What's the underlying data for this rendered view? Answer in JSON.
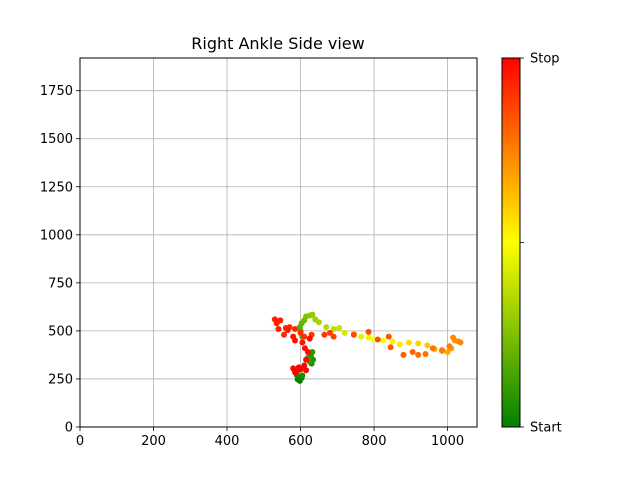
{
  "chart_data": {
    "type": "scatter",
    "title": "Right Ankle Side view",
    "xlabel": "",
    "ylabel": "",
    "xlim": [
      0,
      1080
    ],
    "ylim": [
      0,
      1920
    ],
    "xticks": [
      0,
      200,
      400,
      600,
      800,
      1000
    ],
    "yticks": [
      0,
      250,
      500,
      750,
      1000,
      1250,
      1500,
      1750
    ],
    "grid": true,
    "colorbar": {
      "colors": [
        "#008000",
        "#ffff00",
        "#ff0000"
      ],
      "tick_labels": [
        "Start",
        "",
        "Stop"
      ]
    },
    "series": [
      {
        "points": [
          {
            "x": 598,
            "y": 240,
            "t": 0.0
          },
          {
            "x": 592,
            "y": 248,
            "t": 0.01
          },
          {
            "x": 603,
            "y": 255,
            "t": 0.02
          },
          {
            "x": 596,
            "y": 262,
            "t": 0.03
          },
          {
            "x": 590,
            "y": 270,
            "t": 0.04
          },
          {
            "x": 605,
            "y": 268,
            "t": 0.05
          },
          {
            "x": 630,
            "y": 330,
            "t": 0.06
          },
          {
            "x": 634,
            "y": 350,
            "t": 0.07
          },
          {
            "x": 628,
            "y": 370,
            "t": 0.08
          },
          {
            "x": 632,
            "y": 390,
            "t": 0.09
          },
          {
            "x": 625,
            "y": 340,
            "t": 0.1
          },
          {
            "x": 620,
            "y": 360,
            "t": 0.11
          },
          {
            "x": 605,
            "y": 470,
            "t": 0.14
          },
          {
            "x": 600,
            "y": 500,
            "t": 0.16
          },
          {
            "x": 598,
            "y": 520,
            "t": 0.18
          },
          {
            "x": 603,
            "y": 540,
            "t": 0.2
          },
          {
            "x": 610,
            "y": 555,
            "t": 0.22
          },
          {
            "x": 615,
            "y": 575,
            "t": 0.25
          },
          {
            "x": 625,
            "y": 580,
            "t": 0.27
          },
          {
            "x": 632,
            "y": 585,
            "t": 0.29
          },
          {
            "x": 640,
            "y": 560,
            "t": 0.31
          },
          {
            "x": 650,
            "y": 545,
            "t": 0.33
          },
          {
            "x": 670,
            "y": 520,
            "t": 0.35
          },
          {
            "x": 690,
            "y": 510,
            "t": 0.37
          },
          {
            "x": 705,
            "y": 515,
            "t": 0.39
          },
          {
            "x": 720,
            "y": 490,
            "t": 0.41
          },
          {
            "x": 745,
            "y": 485,
            "t": 0.43
          },
          {
            "x": 765,
            "y": 470,
            "t": 0.45
          },
          {
            "x": 785,
            "y": 465,
            "t": 0.47
          },
          {
            "x": 800,
            "y": 455,
            "t": 0.49
          },
          {
            "x": 825,
            "y": 450,
            "t": 0.51
          },
          {
            "x": 850,
            "y": 445,
            "t": 0.53
          },
          {
            "x": 870,
            "y": 430,
            "t": 0.55
          },
          {
            "x": 895,
            "y": 440,
            "t": 0.57
          },
          {
            "x": 920,
            "y": 435,
            "t": 0.59
          },
          {
            "x": 945,
            "y": 425,
            "t": 0.61
          },
          {
            "x": 965,
            "y": 405,
            "t": 0.63
          },
          {
            "x": 985,
            "y": 395,
            "t": 0.65
          },
          {
            "x": 1000,
            "y": 390,
            "t": 0.67
          },
          {
            "x": 1010,
            "y": 410,
            "t": 0.69
          },
          {
            "x": 1020,
            "y": 450,
            "t": 0.71
          },
          {
            "x": 1030,
            "y": 445,
            "t": 0.72
          },
          {
            "x": 1015,
            "y": 465,
            "t": 0.73
          },
          {
            "x": 1035,
            "y": 440,
            "t": 0.74
          },
          {
            "x": 1005,
            "y": 420,
            "t": 0.75
          },
          {
            "x": 985,
            "y": 400,
            "t": 0.76
          },
          {
            "x": 960,
            "y": 410,
            "t": 0.77
          },
          {
            "x": 940,
            "y": 380,
            "t": 0.78
          },
          {
            "x": 920,
            "y": 375,
            "t": 0.79
          },
          {
            "x": 905,
            "y": 390,
            "t": 0.8
          },
          {
            "x": 880,
            "y": 375,
            "t": 0.81
          },
          {
            "x": 845,
            "y": 415,
            "t": 0.82
          },
          {
            "x": 840,
            "y": 470,
            "t": 0.83
          },
          {
            "x": 810,
            "y": 455,
            "t": 0.84
          },
          {
            "x": 785,
            "y": 495,
            "t": 0.85
          },
          {
            "x": 745,
            "y": 480,
            "t": 0.86
          },
          {
            "x": 690,
            "y": 470,
            "t": 0.87
          },
          {
            "x": 680,
            "y": 490,
            "t": 0.88
          },
          {
            "x": 665,
            "y": 480,
            "t": 0.89
          },
          {
            "x": 630,
            "y": 480,
            "t": 0.9
          },
          {
            "x": 610,
            "y": 470,
            "t": 0.905
          },
          {
            "x": 600,
            "y": 490,
            "t": 0.91
          },
          {
            "x": 585,
            "y": 510,
            "t": 0.915
          },
          {
            "x": 570,
            "y": 520,
            "t": 0.92
          },
          {
            "x": 560,
            "y": 515,
            "t": 0.925
          },
          {
            "x": 555,
            "y": 480,
            "t": 0.93
          },
          {
            "x": 540,
            "y": 510,
            "t": 0.935
          },
          {
            "x": 535,
            "y": 540,
            "t": 0.94
          },
          {
            "x": 530,
            "y": 560,
            "t": 0.945
          },
          {
            "x": 545,
            "y": 555,
            "t": 0.95
          },
          {
            "x": 565,
            "y": 505,
            "t": 0.955
          },
          {
            "x": 580,
            "y": 470,
            "t": 0.96
          },
          {
            "x": 585,
            "y": 450,
            "t": 0.965
          },
          {
            "x": 605,
            "y": 440,
            "t": 0.97
          },
          {
            "x": 612,
            "y": 410,
            "t": 0.975
          },
          {
            "x": 620,
            "y": 390,
            "t": 0.978
          },
          {
            "x": 625,
            "y": 460,
            "t": 0.98
          },
          {
            "x": 615,
            "y": 350,
            "t": 0.983
          },
          {
            "x": 610,
            "y": 320,
            "t": 0.986
          },
          {
            "x": 600,
            "y": 300,
            "t": 0.989
          },
          {
            "x": 590,
            "y": 290,
            "t": 0.992
          },
          {
            "x": 580,
            "y": 305,
            "t": 0.994
          },
          {
            "x": 615,
            "y": 295,
            "t": 0.996
          },
          {
            "x": 595,
            "y": 310,
            "t": 0.998
          },
          {
            "x": 585,
            "y": 285,
            "t": 1.0
          }
        ]
      }
    ]
  }
}
